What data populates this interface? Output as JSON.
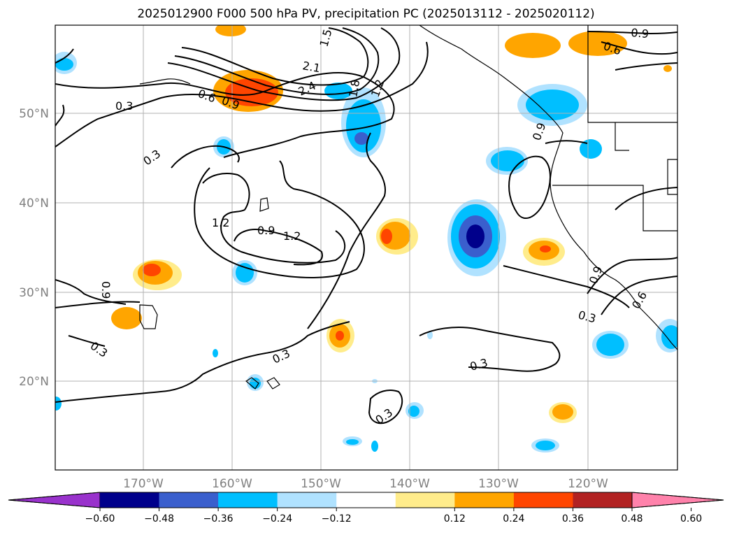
{
  "title": "2025012900 F000 500 hPa PV, precipitation PC (2025013112 - 2025020112)",
  "map": {
    "lat_labels": [
      "50°N",
      "40°N",
      "30°N",
      "20°N"
    ],
    "lon_labels": [
      "170°W",
      "160°W",
      "150°W",
      "140°W",
      "130°W",
      "120°W"
    ],
    "pv_contour_labels": [
      "0.3",
      "0.3",
      "0.3",
      "0.3",
      "0.3",
      "0.3",
      "0.3",
      "0.6",
      "0.6",
      "0.9",
      "0.9",
      "0.9",
      "0.9",
      "0.9",
      "1.2",
      "1.2",
      "1.2",
      "1.5",
      "1.8",
      "2.1",
      "2.4",
      "0.9",
      "0.6"
    ]
  },
  "colorbar": {
    "tick_labels": [
      "−0.60",
      "−0.48",
      "−0.36",
      "−0.24",
      "−0.12",
      "0.12",
      "0.24",
      "0.36",
      "0.48",
      "0.60"
    ],
    "colors": [
      "#9932CC",
      "#00008B",
      "#3A5FCD",
      "#00BFFF",
      "#B0E2FF",
      "#FFFFFF",
      "#FFEC8B",
      "#FFA500",
      "#FF4500",
      "#B22222",
      "#FF82AB"
    ]
  }
}
